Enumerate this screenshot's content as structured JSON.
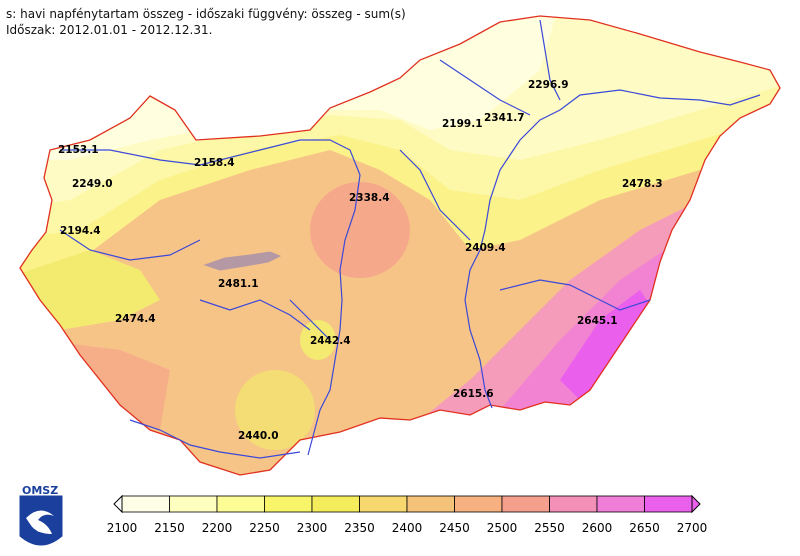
{
  "title": {
    "line1": "s: havi napfénytartam összeg - időszaki függvény: összeg - sum(s)",
    "line2": "Időszak: 2012.01.01 - 2012.12.31."
  },
  "logo": {
    "text": "OMSZ"
  },
  "stations": [
    {
      "value": "2153.1"
    },
    {
      "value": "2158.4"
    },
    {
      "value": "2249.0"
    },
    {
      "value": "2194.4"
    },
    {
      "value": "2338.4"
    },
    {
      "value": "2199.1"
    },
    {
      "value": "2341.7"
    },
    {
      "value": "2296.9"
    },
    {
      "value": "2478.3"
    },
    {
      "value": "2409.4"
    },
    {
      "value": "2481.1"
    },
    {
      "value": "2474.4"
    },
    {
      "value": "2442.4"
    },
    {
      "value": "2645.1"
    },
    {
      "value": "2615.6"
    },
    {
      "value": "2440.0"
    }
  ],
  "legend": {
    "ticks": [
      "2100",
      "2150",
      "2200",
      "2250",
      "2300",
      "2350",
      "2400",
      "2450",
      "2500",
      "2550",
      "2600",
      "2650",
      "2700"
    ],
    "colors": [
      "#ffffe8",
      "#ffffc0",
      "#fdfd96",
      "#f8f56a",
      "#f4ec5a",
      "#f6d86e",
      "#f5c27a",
      "#f7b080",
      "#f4a08c",
      "#f490b8",
      "#f07ed8",
      "#ea60ec"
    ]
  }
}
